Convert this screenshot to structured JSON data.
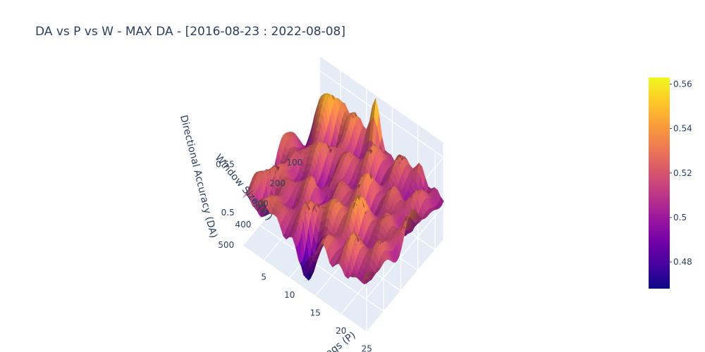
{
  "chart_data": {
    "type": "surface",
    "title": "DA vs P vs W - MAX DA - [2016-08-23 : 2022-08-08]",
    "axes": {
      "x": {
        "label": "Lags (P)",
        "ticks": [
          5,
          10,
          15,
          20,
          25
        ],
        "tick_labels": [
          "5",
          "10",
          "15",
          "20",
          "25"
        ],
        "range": [
          1,
          25
        ]
      },
      "y": {
        "label": "Window Size (W)",
        "ticks": [
          100,
          200,
          300,
          400,
          500
        ],
        "tick_labels": [
          "100",
          "200",
          "300",
          "400",
          "500"
        ],
        "range": [
          50,
          500
        ]
      },
      "z": {
        "label": "Directional Accuracy (DA)",
        "ticks": [
          0.5,
          0.55
        ],
        "tick_labels": [
          "0.5",
          "0.55"
        ],
        "range": [
          0.465,
          0.565
        ]
      }
    },
    "colorbar": {
      "ticks": [
        0.48,
        0.5,
        0.52,
        0.54,
        0.56
      ],
      "tick_labels": [
        "0.48",
        "0.5",
        "0.52",
        "0.54",
        "0.56"
      ],
      "min": 0.468,
      "max": 0.563,
      "colors": [
        "#0d0887",
        "#46039f",
        "#7201a8",
        "#9c179e",
        "#bd3786",
        "#d8576b",
        "#ed7953",
        "#fb9f3a",
        "#fdca26",
        "#f0f921"
      ]
    },
    "surface_summary": {
      "min_da": 0.468,
      "max_da": 0.563,
      "peak_window_size": 50,
      "peak_lags": 12
    },
    "grid": true,
    "background_color": "#e5ecf6"
  }
}
